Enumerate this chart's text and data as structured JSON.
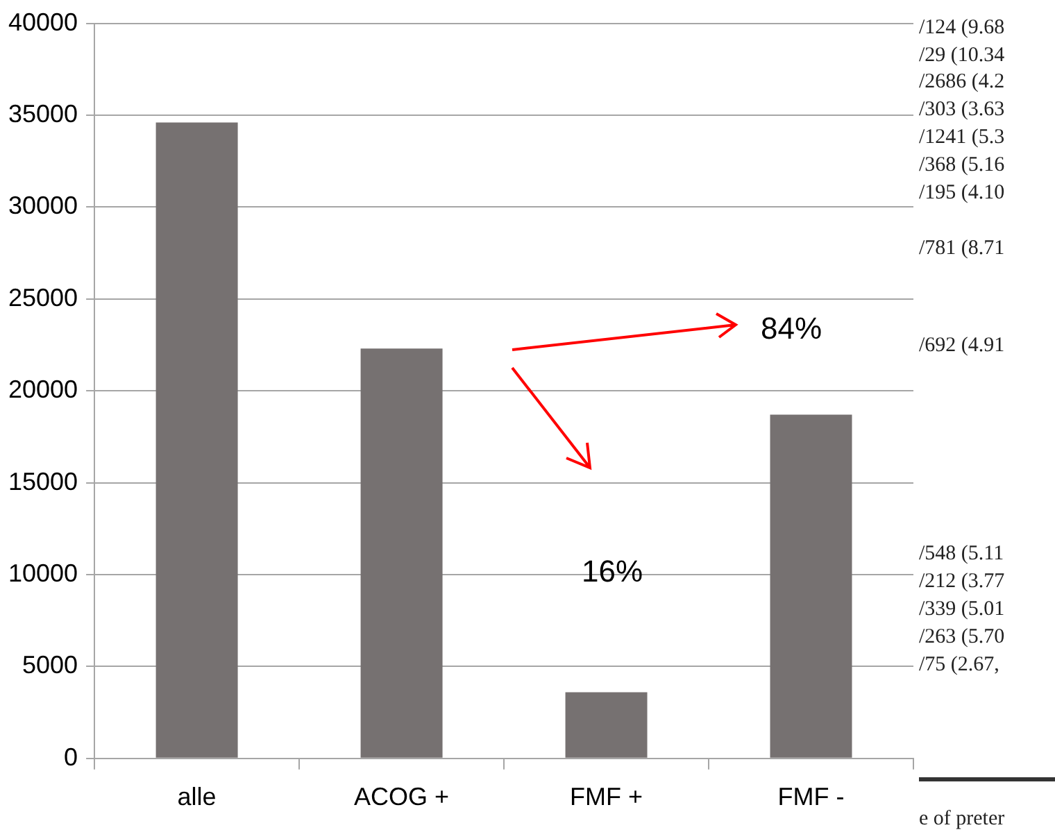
{
  "chart_data": {
    "type": "bar",
    "categories": [
      "alle",
      "ACOG +",
      "FMF +",
      "FMF -"
    ],
    "values": [
      34600,
      22300,
      3600,
      18700
    ],
    "color": "#767171",
    "ylim": [
      0,
      40000
    ],
    "yticks": [
      0,
      5000,
      10000,
      15000,
      20000,
      25000,
      30000,
      35000,
      40000
    ],
    "grid": "y",
    "legend": false,
    "annotations": [
      "84%",
      "16%",
      "/124 (9.68",
      "/29 (10.34",
      "/2686 (4.2",
      "/303 (3.63",
      "/1241 (5.3",
      "/368 (5.16",
      "/195 (4.10",
      "/781 (8.71",
      "/692 (4.91",
      "/548 (5.11",
      "/212 (3.77",
      "/339 (5.01",
      "/263 (5.70",
      "/75 (2.67,",
      "e of preter"
    ]
  }
}
